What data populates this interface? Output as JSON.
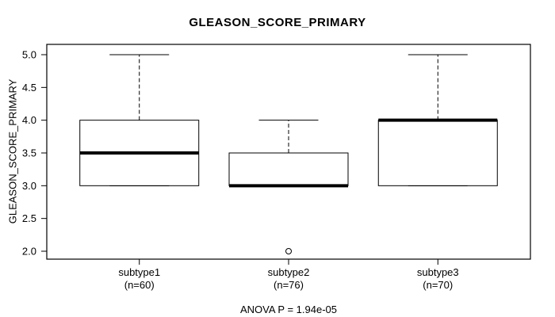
{
  "chart_data": {
    "type": "boxplot",
    "title": "GLEASON_SCORE_PRIMARY",
    "ylabel": "GLEASON_SCORE_PRIMARY",
    "xlabel": "",
    "ylim": [
      2.0,
      5.0
    ],
    "yticks": [
      2.0,
      2.5,
      3.0,
      3.5,
      4.0,
      4.5,
      5.0
    ],
    "ytick_decimals": 1,
    "grid": false,
    "annotation": "ANOVA P = 1.94e-05",
    "categories": [
      "subtype1",
      "subtype2",
      "subtype3"
    ],
    "groups": [
      {
        "label": "subtype1",
        "n_label": "(n=60)",
        "n": 60,
        "whisker_low": 3.0,
        "q1": 3.0,
        "median": 3.5,
        "q3": 4.0,
        "whisker_high": 5.0,
        "outliers": []
      },
      {
        "label": "subtype2",
        "n_label": "(n=76)",
        "n": 76,
        "whisker_low": 3.0,
        "q1": 3.0,
        "median": 3.0,
        "q3": 3.5,
        "whisker_high": 4.0,
        "outliers": [
          2.0
        ]
      },
      {
        "label": "subtype3",
        "n_label": "(n=70)",
        "n": 70,
        "whisker_low": 3.0,
        "q1": 3.0,
        "median": 4.0,
        "q3": 4.0,
        "whisker_high": 5.0,
        "outliers": []
      }
    ],
    "colors": {
      "line": "#000000",
      "box_fill": "#ffffff",
      "background": "#ffffff"
    }
  }
}
